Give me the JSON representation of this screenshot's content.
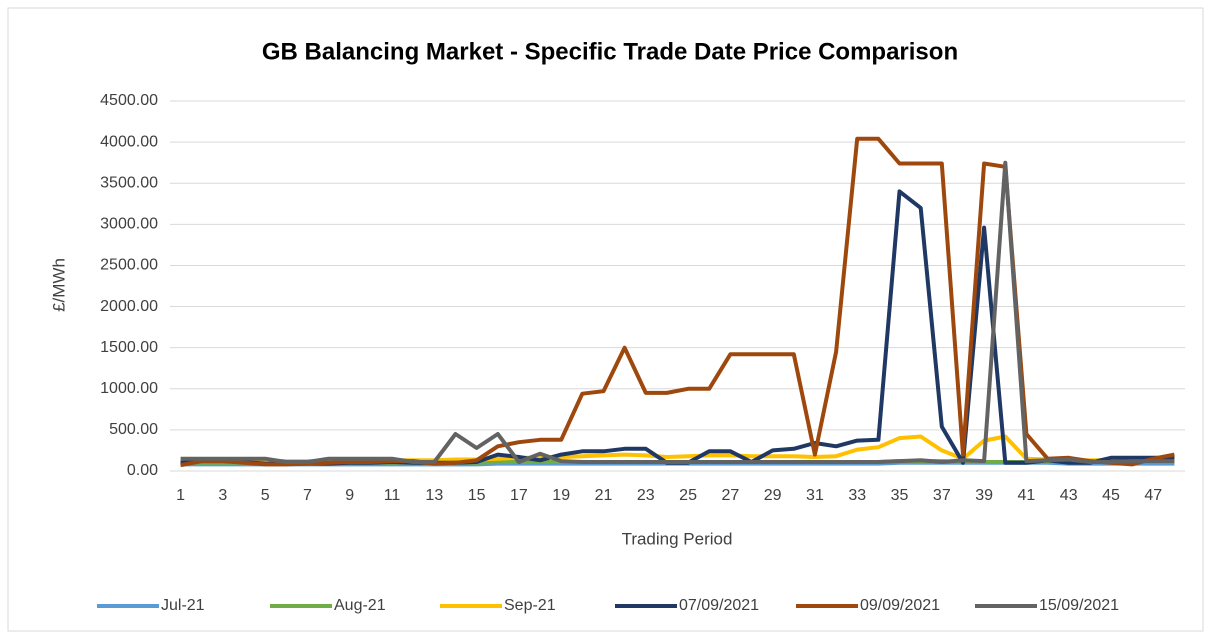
{
  "chart_data": {
    "type": "line",
    "title": "GB Balancing Market - Specific Trade Date Price Comparison",
    "y_label": "£/MWh",
    "x_label": "Trading Period",
    "categories": [
      1,
      null,
      3,
      null,
      5,
      null,
      7,
      null,
      9,
      null,
      11,
      null,
      13,
      null,
      15,
      null,
      17,
      null,
      19,
      null,
      21,
      null,
      23,
      null,
      25,
      null,
      27,
      null,
      29,
      null,
      31,
      null,
      33,
      null,
      35,
      null,
      37,
      null,
      39,
      null,
      41,
      null,
      43,
      null,
      45,
      null,
      47,
      null
    ],
    "ylim": [
      0,
      4500
    ],
    "yticks": [
      {
        "value": 0,
        "label": "0.00"
      },
      {
        "value": 500,
        "label": "500.00"
      },
      {
        "value": 1000,
        "label": "1000.00"
      },
      {
        "value": 1500,
        "label": "1500.00"
      },
      {
        "value": 2000,
        "label": "2000.00"
      },
      {
        "value": 2500,
        "label": "2500.00"
      },
      {
        "value": 3000,
        "label": "3000.00"
      },
      {
        "value": 3500,
        "label": "3500.00"
      },
      {
        "value": 4000,
        "label": "4000.00"
      },
      {
        "value": 4500,
        "label": "4500.00"
      }
    ],
    "grid": true,
    "legend": "bottom",
    "series": [
      {
        "name": "Jul-21",
        "color": "#5b9bd5",
        "values": [
          80,
          80,
          80,
          80,
          80,
          80,
          80,
          80,
          80,
          80,
          80,
          80,
          80,
          80,
          80,
          90,
          90,
          90,
          90,
          90,
          90,
          90,
          90,
          90,
          90,
          90,
          90,
          90,
          90,
          90,
          90,
          90,
          90,
          90,
          100,
          100,
          100,
          100,
          100,
          100,
          100,
          100,
          90,
          90,
          90,
          90,
          90,
          90
        ]
      },
      {
        "name": "Aug-21",
        "color": "#70ad47",
        "values": [
          100,
          100,
          100,
          100,
          100,
          100,
          100,
          100,
          100,
          100,
          100,
          100,
          100,
          100,
          100,
          110,
          110,
          110,
          110,
          110,
          110,
          110,
          110,
          110,
          110,
          110,
          110,
          110,
          110,
          110,
          110,
          110,
          110,
          110,
          120,
          120,
          120,
          110,
          110,
          110,
          110,
          110,
          110,
          110,
          110,
          110,
          110,
          110
        ]
      },
      {
        "name": "Sep-21",
        "color": "#ffc000",
        "values": [
          120,
          120,
          120,
          120,
          120,
          120,
          120,
          120,
          120,
          120,
          130,
          130,
          130,
          140,
          140,
          150,
          160,
          160,
          170,
          180,
          190,
          200,
          190,
          170,
          180,
          190,
          190,
          180,
          180,
          180,
          170,
          180,
          260,
          290,
          400,
          420,
          250,
          150,
          370,
          420,
          150,
          140,
          130,
          130,
          130,
          130,
          130,
          130
        ]
      },
      {
        "name": "07/09/2021",
        "color": "#203864",
        "values": [
          100,
          120,
          120,
          110,
          90,
          90,
          90,
          90,
          100,
          100,
          110,
          100,
          100,
          100,
          110,
          200,
          170,
          130,
          200,
          240,
          240,
          270,
          270,
          100,
          100,
          240,
          240,
          110,
          250,
          270,
          340,
          300,
          370,
          380,
          3400,
          3200,
          540,
          100,
          2960,
          100,
          100,
          130,
          100,
          100,
          160,
          160,
          160,
          160
        ]
      },
      {
        "name": "09/09/2021",
        "color": "#9e480e",
        "values": [
          70,
          120,
          120,
          100,
          80,
          80,
          90,
          100,
          110,
          110,
          120,
          120,
          90,
          100,
          130,
          300,
          350,
          380,
          380,
          940,
          970,
          1500,
          950,
          950,
          1000,
          1000,
          1420,
          1420,
          1420,
          1420,
          200,
          1450,
          4040,
          4040,
          3740,
          3740,
          3740,
          200,
          3740,
          3700,
          450,
          150,
          160,
          120,
          100,
          80,
          150,
          200
        ]
      },
      {
        "name": "15/09/2021",
        "color": "#636363",
        "values": [
          150,
          150,
          150,
          150,
          150,
          110,
          110,
          150,
          150,
          150,
          150,
          110,
          110,
          450,
          280,
          450,
          110,
          210,
          120,
          110,
          110,
          110,
          110,
          110,
          110,
          110,
          110,
          110,
          110,
          110,
          110,
          110,
          110,
          110,
          120,
          130,
          110,
          130,
          120,
          3750,
          120,
          130,
          140,
          110,
          110,
          120,
          120,
          120
        ]
      }
    ]
  }
}
